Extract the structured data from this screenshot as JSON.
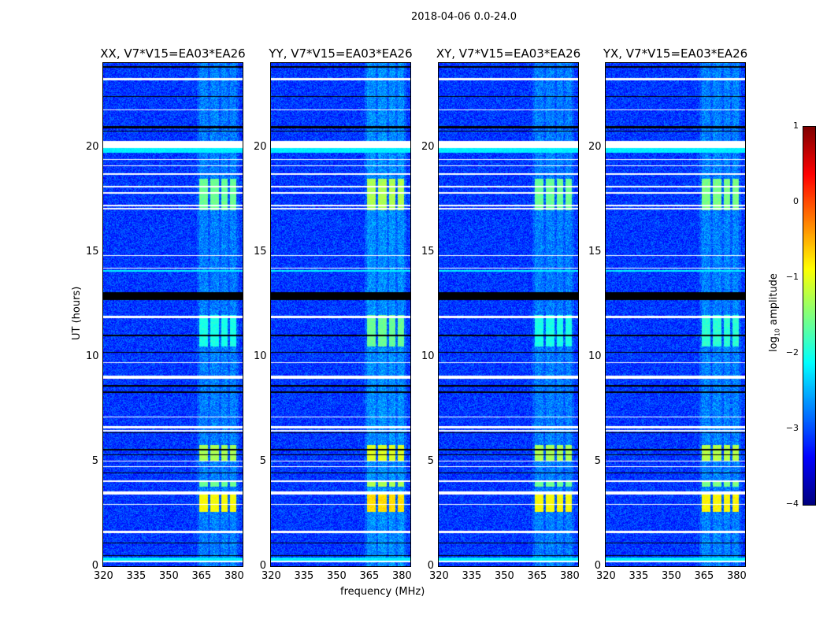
{
  "chart_data": {
    "type": "heatmap",
    "title": "2018-04-06 0.0-24.0",
    "xlabel": "frequency (MHz)",
    "ylabel": "UT (hours)",
    "xlim": [
      320,
      384
    ],
    "ylim": [
      0,
      24
    ],
    "xticks": [
      "320",
      "335",
      "350",
      "365",
      "380"
    ],
    "yticks": [
      "0",
      "5",
      "10",
      "15",
      "20"
    ],
    "panels": [
      {
        "title": "XX, V7*V15=EA03*EA26",
        "rfi_strength": 1.0
      },
      {
        "title": "YY, V7*V15=EA03*EA26",
        "rfi_strength": 1.25
      },
      {
        "title": "XY, V7*V15=EA03*EA26",
        "rfi_strength": 1.0
      },
      {
        "title": "YX, V7*V15=EA03*EA26",
        "rfi_strength": 1.05
      }
    ],
    "colorbar": {
      "label": "log10 amplitude",
      "label_main": "log",
      "label_sub": "10",
      "label_rest": " amplitude",
      "range": [
        -4,
        1
      ],
      "ticks": [
        "1",
        "0",
        "−1",
        "−2",
        "−3",
        "−4"
      ],
      "colormap": "jet"
    },
    "background_level": -3.1,
    "rfi_channels_mhz": [
      [
        364,
        368
      ],
      [
        369,
        373
      ],
      [
        374,
        377
      ],
      [
        378,
        381
      ]
    ],
    "rfi_time_bursts": [
      {
        "hours": [
          17.0,
          18.5
        ],
        "level": -1.6
      },
      {
        "hours": [
          2.6,
          3.5
        ],
        "level": -0.9
      },
      {
        "hours": [
          5.0,
          5.8
        ],
        "level": -1.3
      },
      {
        "hours": [
          3.8,
          4.1
        ],
        "level": -1.6
      },
      {
        "hours": [
          10.5,
          12.0
        ],
        "level": -2.0
      }
    ],
    "flagged_white_hours": [
      [
        23.2,
        23.3
      ],
      [
        21.75,
        21.8
      ],
      [
        19.95,
        20.3
      ],
      [
        19.4,
        19.45
      ],
      [
        19.1,
        19.15
      ],
      [
        18.7,
        18.75
      ],
      [
        18.1,
        18.15
      ],
      [
        17.8,
        17.85
      ],
      [
        17.2,
        17.25
      ],
      [
        17.05,
        17.1
      ],
      [
        14.8,
        14.85
      ],
      [
        14.2,
        14.25
      ],
      [
        11.85,
        11.95
      ],
      [
        9.7,
        9.75
      ],
      [
        8.95,
        9.1
      ],
      [
        7.1,
        7.15
      ],
      [
        6.6,
        6.7
      ],
      [
        6.45,
        6.5
      ],
      [
        5.0,
        5.05
      ],
      [
        4.75,
        4.8
      ],
      [
        4.05,
        4.1
      ],
      [
        3.45,
        3.6
      ],
      [
        2.95,
        3.0
      ],
      [
        1.6,
        1.7
      ],
      [
        0.22,
        0.28
      ]
    ],
    "flagged_black_hours": [
      [
        23.8,
        23.85
      ],
      [
        22.4,
        22.45
      ],
      [
        20.9,
        21.0
      ],
      [
        20.75,
        20.8
      ],
      [
        12.7,
        13.1
      ],
      [
        11.0,
        11.05
      ],
      [
        10.2,
        10.25
      ],
      [
        8.6,
        8.65
      ],
      [
        8.3,
        8.35
      ],
      [
        6.35,
        6.4
      ],
      [
        5.55,
        5.6
      ],
      [
        5.3,
        5.35
      ],
      [
        4.45,
        4.5
      ],
      [
        1.1,
        1.15
      ],
      [
        0.5,
        0.55
      ]
    ]
  }
}
